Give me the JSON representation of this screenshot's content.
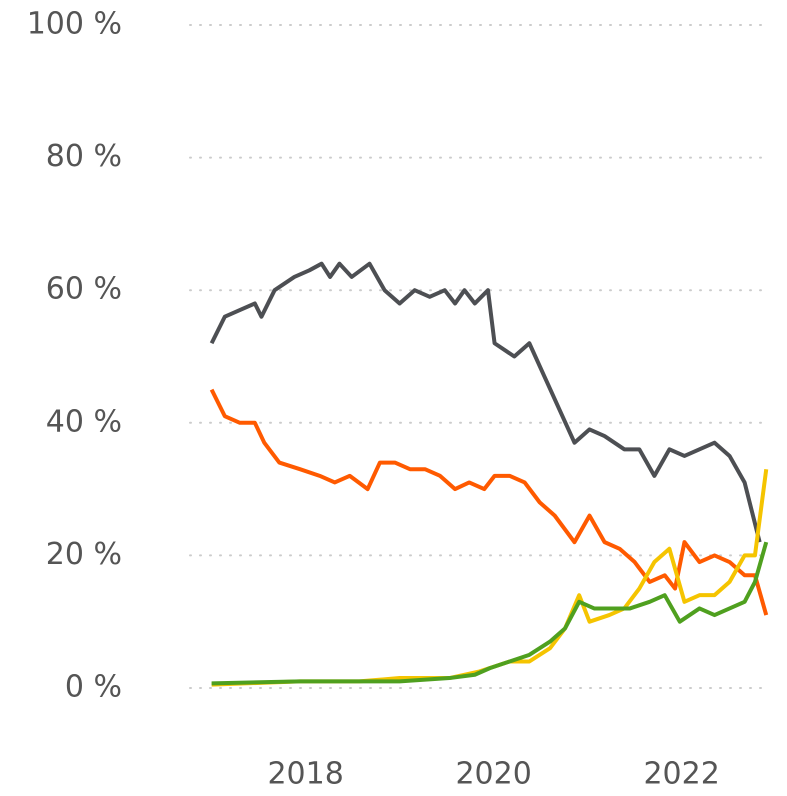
{
  "chart_data": {
    "type": "line",
    "xlim": [
      2016.77,
      2022.94
    ],
    "xticks": [
      2018,
      2020,
      2022
    ],
    "ylim": [
      0,
      100
    ],
    "yticks": [
      {
        "value": 0,
        "label": "0 %"
      },
      {
        "value": 20,
        "label": "20 %"
      },
      {
        "value": 40,
        "label": "40 %"
      },
      {
        "value": 60,
        "label": "60 %"
      },
      {
        "value": 80,
        "label": "80 %"
      },
      {
        "value": 100,
        "label": "100 %"
      }
    ],
    "grid": true,
    "series": [
      {
        "color": "#4d4f53",
        "x": [
          2017.0,
          2017.14,
          2017.3,
          2017.46,
          2017.53,
          2017.67,
          2017.88,
          2018.04,
          2018.17,
          2018.26,
          2018.36,
          2018.49,
          2018.68,
          2018.84,
          2019.0,
          2019.16,
          2019.32,
          2019.48,
          2019.59,
          2019.69,
          2019.8,
          2019.94,
          2020.01,
          2020.22,
          2020.38,
          2020.54,
          2020.7,
          2020.86,
          2021.02,
          2021.18,
          2021.39,
          2021.55,
          2021.71,
          2021.87,
          2022.03,
          2022.19,
          2022.35,
          2022.51,
          2022.67,
          2022.83
        ],
        "values": [
          52,
          56,
          57,
          58,
          56,
          60,
          62,
          63,
          64,
          62,
          64,
          62,
          64,
          60,
          58,
          60,
          59,
          60,
          58,
          60,
          58,
          60,
          52,
          50,
          52,
          47,
          42,
          37,
          39,
          38,
          36,
          36,
          32,
          36,
          35,
          36,
          37,
          35,
          31,
          22
        ]
      },
      {
        "color": "#ff5a00",
        "x": [
          2017.0,
          2017.14,
          2017.3,
          2017.46,
          2017.56,
          2017.72,
          2017.94,
          2018.15,
          2018.31,
          2018.47,
          2018.66,
          2018.79,
          2018.95,
          2019.11,
          2019.27,
          2019.43,
          2019.59,
          2019.74,
          2019.9,
          2020.01,
          2020.17,
          2020.33,
          2020.49,
          2020.65,
          2020.86,
          2021.02,
          2021.18,
          2021.34,
          2021.5,
          2021.66,
          2021.82,
          2021.93,
          2022.03,
          2022.19,
          2022.35,
          2022.51,
          2022.67,
          2022.78,
          2022.9
        ],
        "values": [
          45,
          41,
          40,
          40,
          37,
          34,
          33,
          32,
          31,
          32,
          30,
          34,
          34,
          33,
          33,
          32,
          30,
          31,
          30,
          32,
          32,
          31,
          28,
          26,
          22,
          26,
          22,
          21,
          19,
          16,
          17,
          15,
          22,
          19,
          20,
          19,
          17,
          17,
          11
        ]
      },
      {
        "color": "#f5c400",
        "x": [
          2017.0,
          2017.94,
          2018.57,
          2019.0,
          2019.53,
          2019.85,
          2020.17,
          2020.38,
          2020.6,
          2020.76,
          2020.91,
          2021.02,
          2021.23,
          2021.39,
          2021.55,
          2021.71,
          2021.87,
          2022.03,
          2022.19,
          2022.35,
          2022.51,
          2022.67,
          2022.78,
          2022.9
        ],
        "values": [
          0.5,
          1,
          1,
          1.5,
          1.5,
          2.5,
          4,
          4,
          6,
          9,
          14,
          10,
          11,
          12,
          15,
          19,
          21,
          13,
          14,
          14,
          16,
          20,
          20,
          33
        ]
      },
      {
        "color": "#4fa01f",
        "x": [
          2017.0,
          2017.94,
          2018.57,
          2019.0,
          2019.53,
          2019.8,
          2019.96,
          2020.17,
          2020.38,
          2020.6,
          2020.76,
          2020.91,
          2021.07,
          2021.23,
          2021.45,
          2021.66,
          2021.82,
          2021.98,
          2022.19,
          2022.35,
          2022.51,
          2022.67,
          2022.78,
          2022.9
        ],
        "values": [
          0.7,
          1,
          1,
          1,
          1.5,
          2,
          3,
          4,
          5,
          7,
          9,
          13,
          12,
          12,
          12,
          13,
          14,
          10,
          12,
          11,
          12,
          13,
          16,
          22
        ]
      }
    ]
  }
}
